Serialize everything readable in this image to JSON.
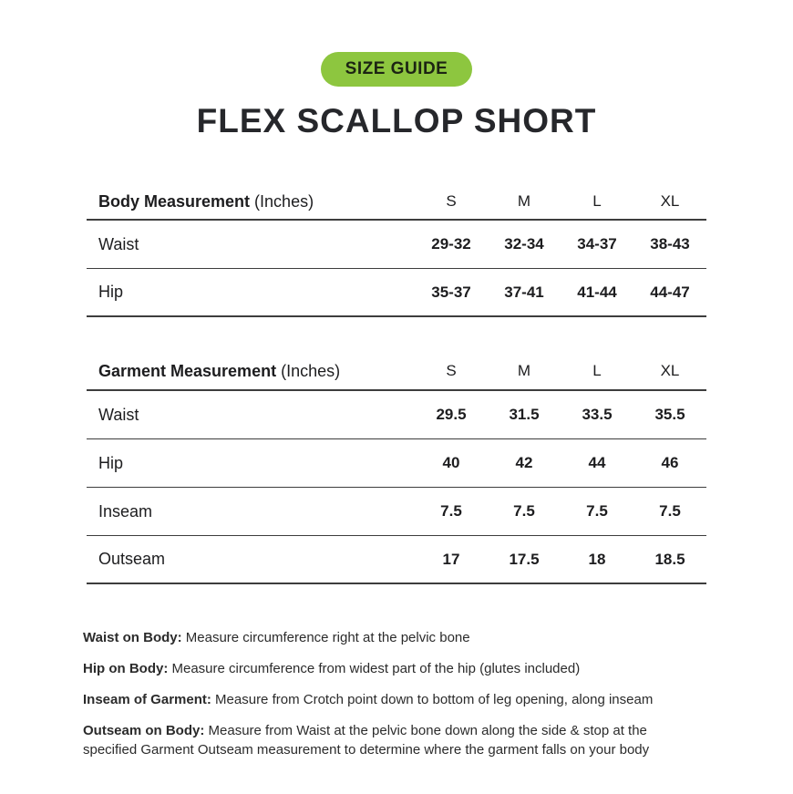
{
  "badge": {
    "label": "SIZE GUIDE",
    "bg_color": "#8dc63f",
    "text_color": "#1c2413"
  },
  "title": "FLEX SCALLOP SHORT",
  "body_table": {
    "header": {
      "label_bold": "Body Measurement",
      "label_normal": " (Inches)",
      "columns": [
        "S",
        "M",
        "L",
        "XL"
      ]
    },
    "rows": [
      {
        "label": "Waist",
        "values": [
          "29-32",
          "32-34",
          "34-37",
          "38-43"
        ]
      },
      {
        "label": "Hip",
        "values": [
          "35-37",
          "37-41",
          "41-44",
          "44-47"
        ]
      }
    ]
  },
  "garment_table": {
    "header": {
      "label_bold": "Garment Measurement",
      "label_normal": " (Inches)",
      "columns": [
        "S",
        "M",
        "L",
        "XL"
      ]
    },
    "rows": [
      {
        "label": "Waist",
        "values": [
          "29.5",
          "31.5",
          "33.5",
          "35.5"
        ]
      },
      {
        "label": "Hip",
        "values": [
          "40",
          "42",
          "44",
          "46"
        ]
      },
      {
        "label": "Inseam",
        "values": [
          "7.5",
          "7.5",
          "7.5",
          "7.5"
        ]
      },
      {
        "label": "Outseam",
        "values": [
          "17",
          "17.5",
          "18",
          "18.5"
        ]
      }
    ]
  },
  "notes": [
    {
      "label": "Waist on Body:",
      "text": " Measure circumference right at the pelvic bone"
    },
    {
      "label": "Hip on Body:",
      "text": " Measure circumference from widest part of the hip (glutes included)"
    },
    {
      "label": "Inseam of Garment:",
      "text": " Measure from Crotch point down to bottom of leg opening, along inseam"
    },
    {
      "label": "Outseam on Body:",
      "text": " Measure from Waist at the pelvic bone down along the side & stop at the specified Garment Outseam measurement to determine where the garment falls on your body"
    }
  ]
}
